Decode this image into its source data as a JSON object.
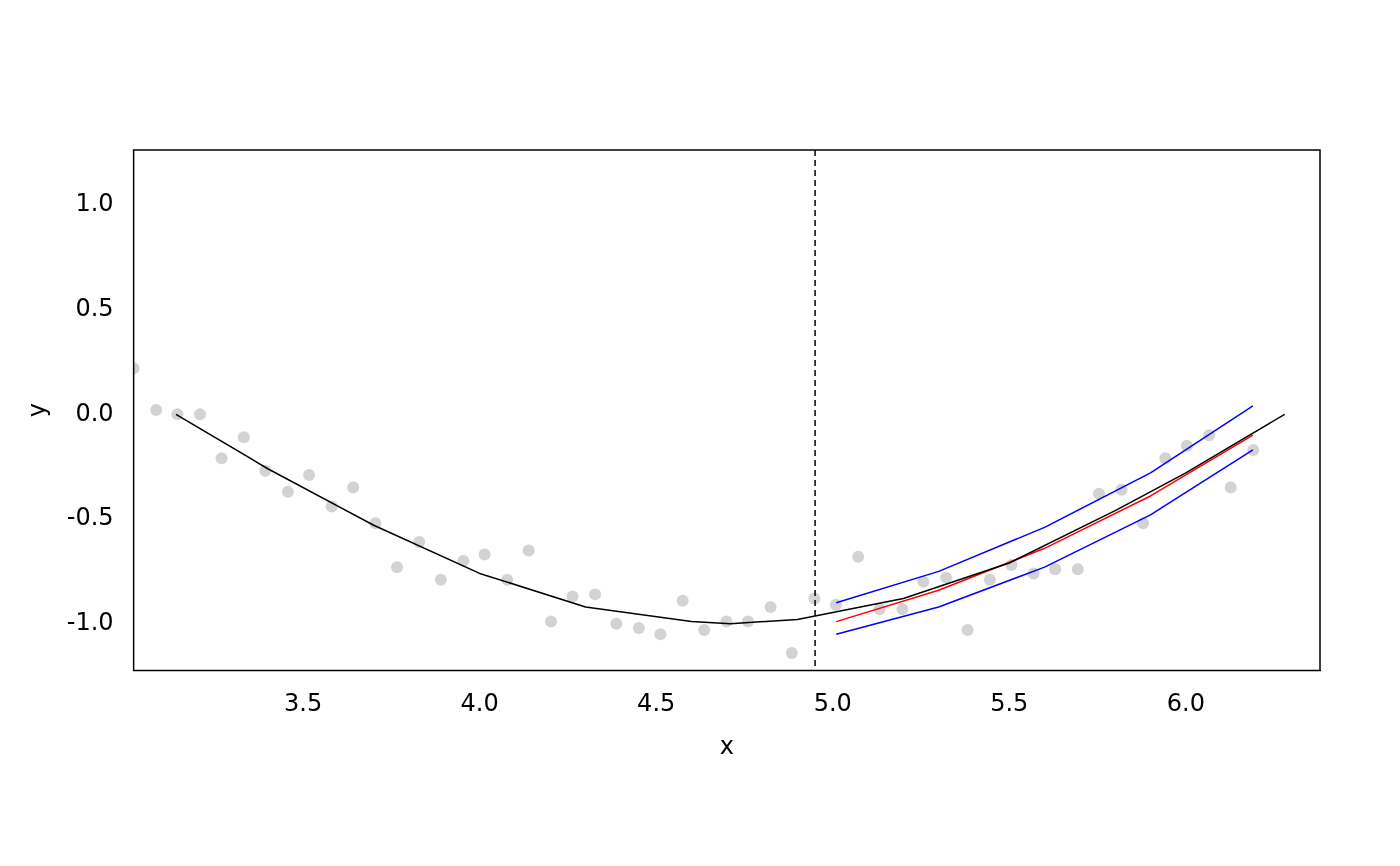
{
  "chart_data": {
    "type": "scatter",
    "xlabel": "x",
    "ylabel": "y",
    "xlim": [
      3.02,
      6.38
    ],
    "ylim": [
      -1.223,
      1.262
    ],
    "xticks": [
      3.5,
      {
        "value": 4,
        "label": "4.0"
      },
      4.5,
      {
        "value": 5,
        "label": "5.0"
      },
      5.5,
      {
        "value": 6,
        "label": "6.0"
      }
    ],
    "yticks": [
      {
        "value": -1,
        "label": "-1.0"
      },
      -0.5,
      {
        "value": 0,
        "label": "0.0"
      },
      0.5,
      {
        "value": 1,
        "label": "1.0"
      }
    ],
    "grid": false,
    "legend": false,
    "series": [
      {
        "color": "#d3d3d3",
        "marker": "circle",
        "x": [
          3.02,
          3.084,
          3.144,
          3.208,
          3.269,
          3.332,
          3.393,
          3.457,
          3.517,
          3.581,
          3.642,
          3.705,
          3.766,
          3.829,
          3.89,
          3.954,
          4.014,
          4.078,
          4.139,
          4.202,
          4.263,
          4.327,
          4.387,
          4.451,
          4.512,
          4.575,
          4.636,
          4.699,
          4.76,
          4.824,
          4.884,
          4.948,
          5.009,
          5.072,
          5.133,
          5.197,
          5.257,
          5.321,
          5.382,
          5.445,
          5.506,
          5.569,
          5.63,
          5.694,
          5.754,
          5.818,
          5.879,
          5.942,
          6.003,
          6.066,
          6.127,
          6.191
        ],
        "values": [
          0.22,
          0.02,
          0,
          0,
          -0.21,
          -0.11,
          -0.27,
          -0.37,
          -0.29,
          -0.44,
          -0.35,
          -0.52,
          -0.73,
          -0.61,
          -0.79,
          -0.7,
          -0.67,
          -0.79,
          -0.65,
          -0.99,
          -0.87,
          -0.86,
          -1,
          -1.02,
          -1.05,
          -0.89,
          -1.03,
          -0.99,
          -0.99,
          -0.92,
          -1.14,
          -0.88,
          -0.91,
          -0.68,
          -0.93,
          -0.93,
          -0.8,
          -0.78,
          -1.03,
          -0.79,
          -0.72,
          -0.76,
          -0.74,
          -0.74,
          -0.38,
          -0.36,
          -0.52,
          -0.21,
          -0.15,
          -0.1,
          -0.35,
          -0.17
        ]
      },
      {
        "type": "line",
        "color": "#000000",
        "marker": "none",
        "line_style": "solid",
        "x": [
          3.14,
          3.4,
          3.7,
          4.0,
          4.3,
          4.6,
          4.71,
          4.9,
          5.2,
          5.5,
          5.8,
          6.0,
          6.28
        ],
        "values": [
          0,
          -0.26,
          -0.53,
          -0.76,
          -0.92,
          -0.99,
          -1,
          -0.98,
          -0.88,
          -0.71,
          -0.46,
          -0.28,
          0
        ]
      },
      {
        "type": "line",
        "color": "#ff0000",
        "marker": "none",
        "line_style": "solid",
        "x": [
          5.01,
          5.3,
          5.6,
          5.9,
          6.19
        ],
        "values": [
          -0.99,
          -0.84,
          -0.64,
          -0.39,
          -0.1
        ]
      },
      {
        "type": "line",
        "color": "#0000ff",
        "marker": "none",
        "line_style": "solid",
        "x": [
          5.01,
          5.3,
          5.6,
          5.9,
          6.19
        ],
        "values": [
          -0.9,
          -0.75,
          -0.54,
          -0.28,
          0.04
        ]
      },
      {
        "type": "line",
        "color": "#0000ff",
        "marker": "none",
        "line_style": "solid",
        "x": [
          5.01,
          5.3,
          5.6,
          5.9,
          6.19
        ],
        "values": [
          -1.05,
          -0.92,
          -0.73,
          -0.48,
          -0.17
        ]
      }
    ],
    "ref_lines": [
      {
        "axis": "x",
        "value": 4.95,
        "color": "#000000",
        "line_style": "dashed"
      }
    ]
  }
}
